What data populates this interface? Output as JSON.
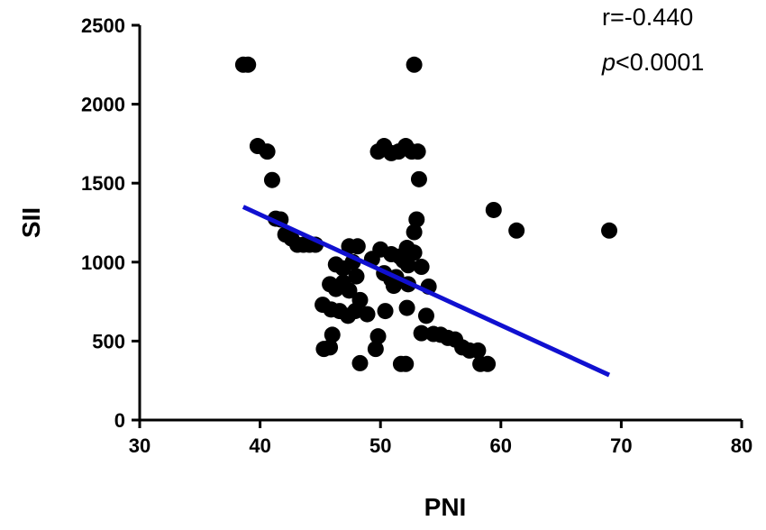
{
  "chart_data": {
    "type": "scatter",
    "title": "",
    "xlabel": "PNI",
    "ylabel": "SII",
    "xlim": [
      30,
      80
    ],
    "ylim": [
      0,
      2500
    ],
    "x_ticks": [
      "30",
      "40",
      "50",
      "60",
      "70",
      "80"
    ],
    "y_ticks": [
      "0",
      "500",
      "1000",
      "1500",
      "2000",
      "2500"
    ],
    "grid": false,
    "legend": "none",
    "annotations": {
      "r_text": "r=-0.440",
      "p_symbol": "p",
      "p_value": "<0.0001"
    },
    "colors": {
      "points": "#000000",
      "regression": "#1010d0",
      "axis": "#000000"
    },
    "points": [
      [
        38.6,
        2250
      ],
      [
        39.0,
        2250
      ],
      [
        52.8,
        2250
      ],
      [
        39.8,
        1735
      ],
      [
        40.6,
        1700
      ],
      [
        41.0,
        1520
      ],
      [
        49.8,
        1700
      ],
      [
        50.3,
        1735
      ],
      [
        50.9,
        1690
      ],
      [
        51.5,
        1700
      ],
      [
        52.1,
        1735
      ],
      [
        52.6,
        1700
      ],
      [
        53.1,
        1700
      ],
      [
        53.2,
        1525
      ],
      [
        41.3,
        1275
      ],
      [
        41.7,
        1270
      ],
      [
        53.0,
        1270
      ],
      [
        59.4,
        1330
      ],
      [
        61.3,
        1200
      ],
      [
        69.0,
        1200
      ],
      [
        42.1,
        1175
      ],
      [
        42.6,
        1150
      ],
      [
        43.1,
        1110
      ],
      [
        43.6,
        1110
      ],
      [
        44.1,
        1110
      ],
      [
        44.6,
        1110
      ],
      [
        47.4,
        1100
      ],
      [
        48.1,
        1100
      ],
      [
        52.8,
        1190
      ],
      [
        50.0,
        1080
      ],
      [
        50.9,
        1050
      ],
      [
        51.6,
        1035
      ],
      [
        52.2,
        1090
      ],
      [
        52.8,
        1060
      ],
      [
        53.4,
        970
      ],
      [
        46.3,
        985
      ],
      [
        46.9,
        960
      ],
      [
        47.7,
        1000
      ],
      [
        49.3,
        1020
      ],
      [
        50.3,
        930
      ],
      [
        50.9,
        890
      ],
      [
        51.3,
        905
      ],
      [
        51.9,
        1010
      ],
      [
        52.3,
        980
      ],
      [
        45.8,
        860
      ],
      [
        46.3,
        830
      ],
      [
        46.9,
        870
      ],
      [
        47.4,
        820
      ],
      [
        48.0,
        910
      ],
      [
        51.1,
        850
      ],
      [
        52.3,
        860
      ],
      [
        54.0,
        845
      ],
      [
        45.2,
        730
      ],
      [
        45.9,
        700
      ],
      [
        46.6,
        690
      ],
      [
        47.3,
        660
      ],
      [
        47.9,
        690
      ],
      [
        48.3,
        760
      ],
      [
        48.9,
        670
      ],
      [
        50.4,
        690
      ],
      [
        52.2,
        710
      ],
      [
        53.8,
        660
      ],
      [
        46.0,
        540
      ],
      [
        49.8,
        530
      ],
      [
        53.4,
        550
      ],
      [
        54.4,
        545
      ],
      [
        55.0,
        540
      ],
      [
        55.6,
        520
      ],
      [
        56.2,
        510
      ],
      [
        45.3,
        450
      ],
      [
        45.8,
        460
      ],
      [
        49.6,
        450
      ],
      [
        56.8,
        460
      ],
      [
        57.4,
        440
      ],
      [
        58.1,
        440
      ],
      [
        48.3,
        360
      ],
      [
        51.7,
        355
      ],
      [
        52.1,
        355
      ],
      [
        58.3,
        355
      ],
      [
        58.9,
        355
      ]
    ],
    "regression_line": {
      "x": [
        38.6,
        69.0
      ],
      "y": [
        1350,
        285
      ]
    }
  }
}
